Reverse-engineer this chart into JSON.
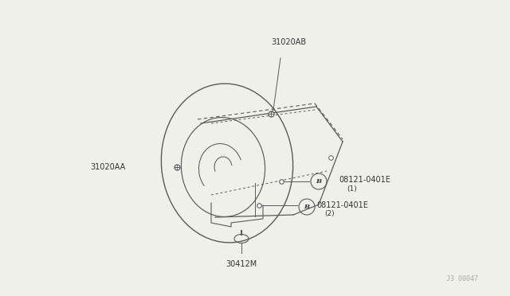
{
  "bg_color": "#f0f0eb",
  "line_color": "#5a5a5a",
  "text_color": "#333333",
  "watermark": "J3 00047",
  "label_31020AB": "31020AB",
  "label_31020AA": "31020AA",
  "label_08121_1": "08121-0401E",
  "label_08121_2": "08121-0401E",
  "label_sub1": "(1)",
  "label_sub2": "(2)",
  "label_30412M": "30412M"
}
